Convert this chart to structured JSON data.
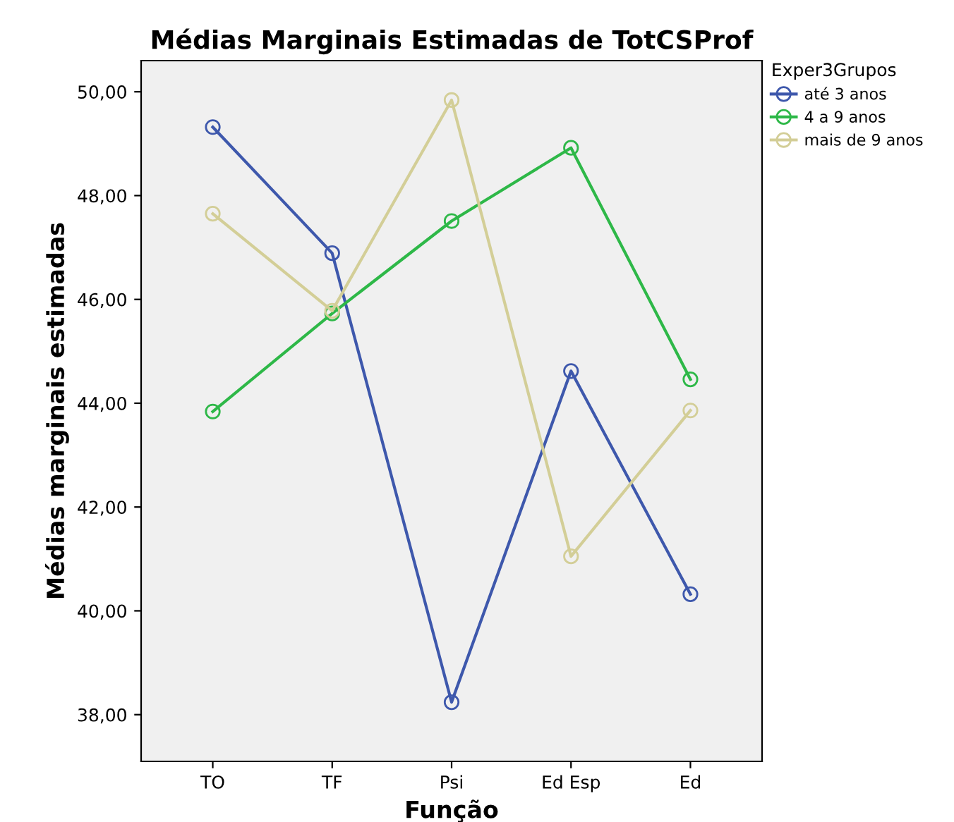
{
  "chart_data": {
    "type": "line",
    "title": "Médias Marginais Estimadas de TotCSProf",
    "xlabel": "Função",
    "ylabel": "Médias marginais estimadas",
    "legend_title": "Exper3Grupos",
    "categories": [
      "TO",
      "TF",
      "Psi",
      "Ed Esp",
      "Ed"
    ],
    "series": [
      {
        "name": "até 3 anos",
        "color": "#3e58ac",
        "values": [
          49.32,
          46.89,
          38.24,
          44.62,
          40.32
        ]
      },
      {
        "name": "4 a 9 anos",
        "color": "#2eb848",
        "values": [
          43.84,
          45.73,
          47.51,
          48.92,
          44.46
        ]
      },
      {
        "name": "mais de 9 anos",
        "color": "#d3ce97",
        "values": [
          47.65,
          45.78,
          49.84,
          41.05,
          43.86
        ]
      }
    ],
    "ylim": [
      37.1,
      50.6
    ],
    "yticks": [
      {
        "value": 38,
        "label": "38,00"
      },
      {
        "value": 40,
        "label": "40,00"
      },
      {
        "value": 42,
        "label": "42,00"
      },
      {
        "value": 44,
        "label": "44,00"
      },
      {
        "value": 46,
        "label": "46,00"
      },
      {
        "value": 48,
        "label": "48,00"
      },
      {
        "value": 50,
        "label": "50,00"
      }
    ],
    "marker": "circle",
    "line_style": "solid",
    "grid": false,
    "legend": "top right"
  }
}
